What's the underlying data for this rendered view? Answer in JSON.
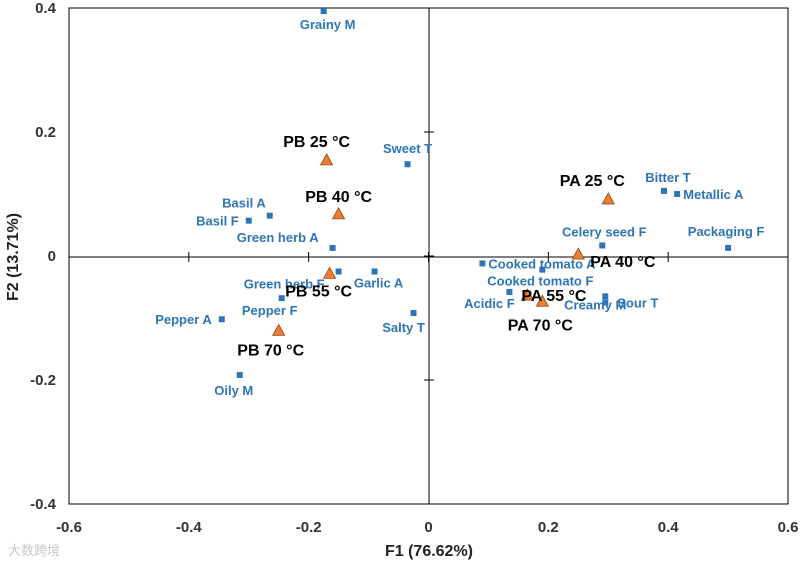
{
  "chart_data": {
    "type": "scatter",
    "xlabel": "F1 (76.62%)",
    "ylabel": "F2 (13.71%)",
    "xlim": [
      -0.6,
      0.6
    ],
    "ylim": [
      -0.4,
      0.4
    ],
    "x_ticks": [
      "-0.6",
      "-0.4",
      "-0.2",
      "0",
      "0.2",
      "0.4",
      "0.6"
    ],
    "y_ticks": [
      "-0.4",
      "-0.2",
      "0",
      "0.2",
      "0.4"
    ],
    "grid": false,
    "colors": {
      "attributes": "#2e75b6",
      "samples": "#ed7d31",
      "sample_text": "#000000"
    },
    "series": [
      {
        "marker": "square",
        "points": [
          {
            "label": "Grainy M",
            "x": -0.175,
            "y": 0.395
          },
          {
            "label": "Sweet T",
            "x": -0.035,
            "y": 0.148
          },
          {
            "label": "Basil A",
            "x": -0.265,
            "y": 0.065
          },
          {
            "label": "Basil F",
            "x": -0.3,
            "y": 0.057
          },
          {
            "label": "Green herb A",
            "x": -0.16,
            "y": 0.013
          },
          {
            "label": "Green herb F",
            "x": -0.15,
            "y": -0.025
          },
          {
            "label": "Garlic A",
            "x": -0.09,
            "y": -0.025
          },
          {
            "label": "Pepper F",
            "x": -0.245,
            "y": -0.068
          },
          {
            "label": "Pepper A",
            "x": -0.345,
            "y": -0.102
          },
          {
            "label": "Salty T",
            "x": -0.025,
            "y": -0.092
          },
          {
            "label": "Oily M",
            "x": -0.315,
            "y": -0.192
          },
          {
            "label": "Bitter T",
            "x": 0.393,
            "y": 0.105
          },
          {
            "label": "Metallic A",
            "x": 0.415,
            "y": 0.1
          },
          {
            "label": "Packaging F",
            "x": 0.5,
            "y": 0.013
          },
          {
            "label": "Celery seed F",
            "x": 0.29,
            "y": 0.017
          },
          {
            "label": "Cooked tomato A",
            "x": 0.09,
            "y": -0.012
          },
          {
            "label": "Cooked tomato F",
            "x": 0.19,
            "y": -0.022
          },
          {
            "label": "Acidic F",
            "x": 0.135,
            "y": -0.058
          },
          {
            "label": "Creamy M",
            "x": 0.295,
            "y": -0.065
          },
          {
            "label": "Sour T",
            "x": 0.295,
            "y": -0.075
          }
        ]
      },
      {
        "marker": "triangle",
        "points": [
          {
            "label": "PB 25 °C",
            "x": -0.17,
            "y": 0.155
          },
          {
            "label": "PB 40 °C",
            "x": -0.15,
            "y": 0.068
          },
          {
            "label": "PB 55 °C",
            "x": -0.165,
            "y": -0.028
          },
          {
            "label": "PB 70 °C",
            "x": -0.25,
            "y": -0.12
          },
          {
            "label": "PA 25 °C",
            "x": 0.3,
            "y": 0.092
          },
          {
            "label": "PA 40 °C",
            "x": 0.25,
            "y": 0.003
          },
          {
            "label": "PA 55 °C",
            "x": 0.165,
            "y": -0.063
          },
          {
            "label": "PA 70 °C",
            "x": 0.19,
            "y": -0.073
          }
        ]
      }
    ]
  },
  "watermark": "大数跨境"
}
